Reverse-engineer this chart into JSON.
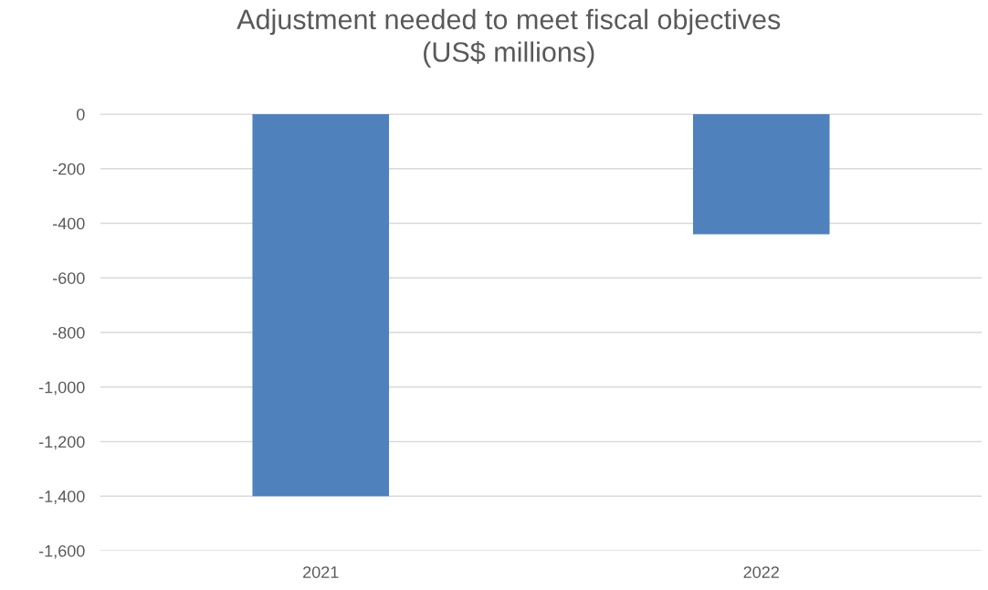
{
  "chart_data": {
    "type": "bar",
    "title": "Adjustment needed to meet fiscal objectives\n(US$ millions)",
    "categories": [
      "2021",
      "2022"
    ],
    "series": [
      {
        "color": "#4f81bd",
        "values": [
          -1400,
          -440
        ]
      }
    ],
    "ylim": [
      -1600,
      0
    ],
    "yticks": [
      {
        "value": 0,
        "label": "0"
      },
      {
        "value": -200,
        "label": "-200"
      },
      {
        "value": -400,
        "label": "-400"
      },
      {
        "value": -600,
        "label": "-600"
      },
      {
        "value": -800,
        "label": "-800"
      },
      {
        "value": -1000,
        "label": "-1,000"
      },
      {
        "value": -1200,
        "label": "-1,200"
      },
      {
        "value": -1400,
        "label": "-1,400"
      },
      {
        "value": -1600,
        "label": "-1,600"
      }
    ],
    "grid": "y",
    "legend": false
  }
}
